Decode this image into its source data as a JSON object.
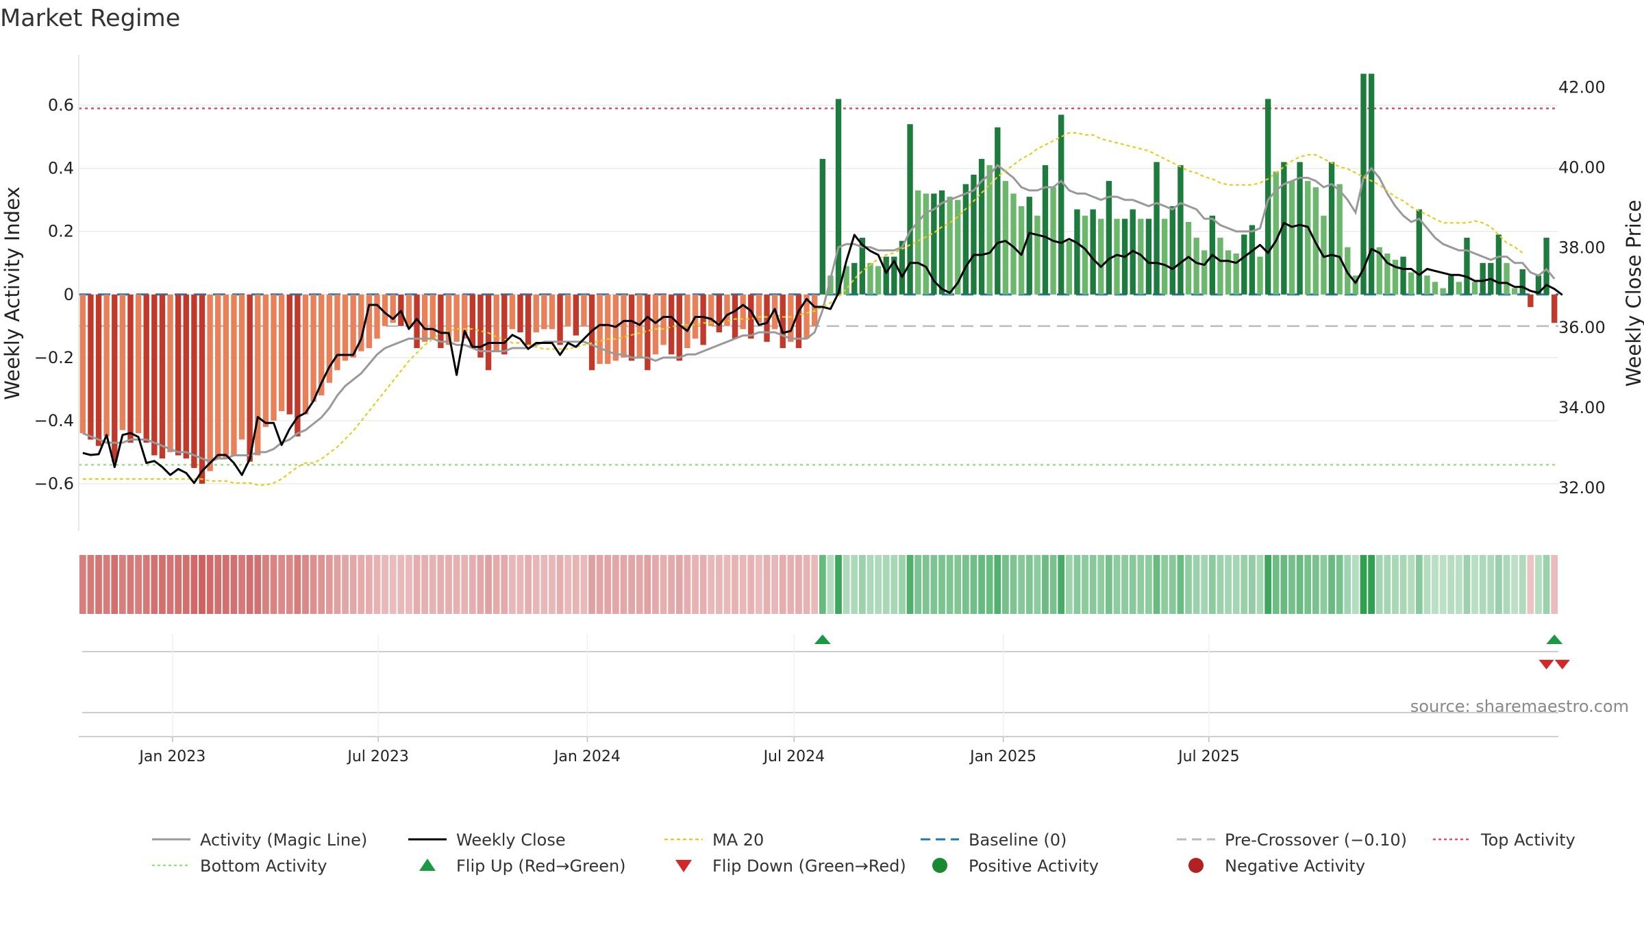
{
  "title": "Market Regime",
  "source": "source: sharemaestro.com",
  "colors": {
    "bar_red_dark": "#c0392b",
    "bar_red_light": "#e8805a",
    "bar_green_dark": "#1e7b3e",
    "bar_green_light": "#6bb86c",
    "magic_line": "#999999",
    "close_line": "#000000",
    "ma20": "#e6cc1e",
    "baseline": "#1f77b4",
    "pre_crossover": "#bbbbbb",
    "top_activity": "#e84a6a",
    "bottom_activity": "#9be07a",
    "flip_up": "#1a9a45",
    "flip_down": "#d62728",
    "positive": "#1a8a30",
    "negative": "#b22222"
  },
  "chart_data": {
    "type": "bar",
    "x_start": "2022-10-14",
    "x_step_days": 7,
    "x_ticks": [
      "Jan 2023",
      "Jul 2023",
      "Jan 2024",
      "Jul 2024",
      "Jan 2025",
      "Jul 2025"
    ],
    "x_tick_dates": [
      "2023-01-01",
      "2023-07-01",
      "2024-01-01",
      "2024-07-01",
      "2025-01-01",
      "2025-07-01"
    ],
    "left_axis": {
      "label": "Weekly Activity Index",
      "ticks": [
        "−0.6",
        "−0.4",
        "−0.2",
        "0",
        "0.2",
        "0.4",
        "0.6"
      ],
      "range": [
        -0.75,
        0.76
      ]
    },
    "right_axis": {
      "label": "Weekly Close Price",
      "ticks": [
        "32.00",
        "34.00",
        "36.00",
        "38.00",
        "40.00",
        "42.00"
      ],
      "range": [
        30.9,
        42.8
      ]
    },
    "reference_lines": {
      "baseline": 0,
      "pre_crossover": -0.1,
      "top_activity": 0.59,
      "bottom_activity": -0.54
    },
    "series": [
      {
        "name": "Weekly Activity Index (bars)",
        "values": [
          -0.44,
          -0.46,
          -0.48,
          -0.45,
          -0.53,
          -0.43,
          -0.47,
          -0.44,
          -0.47,
          -0.51,
          -0.52,
          -0.5,
          -0.51,
          -0.52,
          -0.55,
          -0.6,
          -0.56,
          -0.52,
          -0.52,
          -0.51,
          -0.46,
          -0.53,
          -0.51,
          -0.42,
          -0.4,
          -0.37,
          -0.38,
          -0.45,
          -0.38,
          -0.34,
          -0.32,
          -0.28,
          -0.24,
          -0.21,
          -0.2,
          -0.18,
          -0.17,
          -0.14,
          -0.1,
          -0.09,
          -0.1,
          -0.1,
          -0.17,
          -0.15,
          -0.14,
          -0.17,
          -0.16,
          -0.15,
          -0.14,
          -0.17,
          -0.2,
          -0.24,
          -0.18,
          -0.19,
          -0.11,
          -0.12,
          -0.16,
          -0.12,
          -0.11,
          -0.11,
          -0.16,
          -0.1,
          -0.13,
          -0.1,
          -0.24,
          -0.22,
          -0.22,
          -0.21,
          -0.2,
          -0.21,
          -0.2,
          -0.24,
          -0.19,
          -0.16,
          -0.19,
          -0.21,
          -0.17,
          -0.14,
          -0.16,
          -0.1,
          -0.12,
          -0.1,
          -0.14,
          -0.11,
          -0.14,
          -0.09,
          -0.15,
          -0.11,
          -0.17,
          -0.15,
          -0.17,
          -0.14,
          -0.1,
          0.43,
          0.06,
          0.62,
          0.09,
          0.1,
          0.18,
          0.1,
          0.09,
          0.12,
          0.12,
          0.17,
          0.54,
          0.33,
          0.32,
          0.32,
          0.33,
          0.31,
          0.3,
          0.35,
          0.38,
          0.43,
          0.41,
          0.53,
          0.36,
          0.32,
          0.28,
          0.31,
          0.25,
          0.41,
          0.34,
          0.57,
          0.17,
          0.27,
          0.25,
          0.27,
          0.24,
          0.36,
          0.24,
          0.24,
          0.27,
          0.24,
          0.24,
          0.42,
          0.24,
          0.28,
          0.41,
          0.23,
          0.18,
          0.14,
          0.25,
          0.18,
          0.14,
          0.13,
          0.19,
          0.22,
          0.12,
          0.62,
          0.39,
          0.42,
          0.36,
          0.42,
          0.36,
          0.34,
          0.25,
          0.42,
          0.35,
          0.15,
          0.06,
          0.7,
          0.7,
          0.15,
          0.13,
          0.11,
          0.12,
          0.07,
          0.27,
          0.06,
          0.04,
          0.02,
          0.06,
          0.04,
          0.18,
          0.04,
          0.1,
          0.1,
          0.19,
          0.1,
          0.02,
          0.08,
          -0.04,
          0.06,
          0.18,
          -0.09
        ]
      },
      {
        "name": "Weekly Close",
        "values": [
          32.85,
          32.8,
          32.82,
          33.3,
          32.5,
          33.3,
          33.35,
          33.25,
          32.6,
          32.65,
          32.5,
          32.3,
          32.45,
          32.35,
          32.1,
          32.4,
          32.6,
          32.8,
          32.8,
          32.6,
          32.3,
          32.7,
          33.75,
          33.6,
          33.6,
          33.05,
          33.45,
          33.75,
          33.85,
          34.15,
          34.6,
          35,
          35.3,
          35.3,
          35.3,
          35.7,
          36.55,
          36.55,
          36.35,
          36.2,
          36.4,
          35.95,
          36.2,
          35.95,
          35.95,
          35.85,
          35.85,
          34.8,
          35.9,
          35.5,
          35.5,
          35.6,
          35.6,
          35.6,
          35.8,
          35.7,
          35.45,
          35.6,
          35.6,
          35.6,
          35.3,
          35.6,
          35.5,
          35.7,
          35.9,
          36.05,
          36.05,
          36,
          36.15,
          36.15,
          36.05,
          36.25,
          36.1,
          36.25,
          36.25,
          36.05,
          35.9,
          36.25,
          36.25,
          36.2,
          36.05,
          36.3,
          36.4,
          36.55,
          36.4,
          36.05,
          36.1,
          36.45,
          35.85,
          35.9,
          36.4,
          36.7,
          36.5,
          36.5,
          36.45,
          36.85,
          37.65,
          38.3,
          38.05,
          37.9,
          37.8,
          37.35,
          37.65,
          37.25,
          37.6,
          37.6,
          37.5,
          37.15,
          36.95,
          36.85,
          37.1,
          37.5,
          37.8,
          37.8,
          37.85,
          38.1,
          38.15,
          38,
          37.8,
          38.35,
          38.3,
          38.25,
          38.15,
          38.1,
          38.2,
          38.1,
          37.95,
          37.7,
          37.5,
          37.7,
          37.8,
          37.75,
          37.9,
          37.8,
          37.6,
          37.6,
          37.55,
          37.45,
          37.6,
          37.75,
          37.6,
          37.55,
          37.8,
          37.65,
          37.65,
          37.6,
          37.75,
          37.9,
          38.05,
          37.85,
          38.15,
          38.6,
          38.5,
          38.55,
          38.5,
          38.1,
          37.75,
          37.8,
          37.75,
          37.35,
          37.1,
          37.45,
          37.95,
          37.85,
          37.6,
          37.5,
          37.45,
          37.45,
          37.3,
          37.45,
          37.4,
          37.35,
          37.3,
          37.3,
          37.25,
          37.15,
          37.15,
          37.2,
          37.1,
          37.1,
          37,
          37,
          36.9,
          36.85,
          37.05,
          36.95,
          36.8
        ]
      },
      {
        "name": "MA 20",
        "values": [
          32.2,
          32.2,
          32.2,
          32.2,
          32.2,
          32.2,
          32.2,
          32.2,
          32.2,
          32.2,
          32.2,
          32.2,
          32.2,
          32.2,
          32.2,
          32.2,
          32.15,
          32.15,
          32.15,
          32.1,
          32.1,
          32.1,
          32.05,
          32.05,
          32.1,
          32.2,
          32.35,
          32.5,
          32.6,
          32.6,
          32.7,
          32.85,
          33,
          33.2,
          33.4,
          33.65,
          33.9,
          34.15,
          34.4,
          34.65,
          34.9,
          35.15,
          35.35,
          35.55,
          35.7,
          35.85,
          35.9,
          35.95,
          35.95,
          35.95,
          35.9,
          35.85,
          35.75,
          35.7,
          35.6,
          35.6,
          35.55,
          35.5,
          35.45,
          35.45,
          35.45,
          35.45,
          35.5,
          35.55,
          35.6,
          35.65,
          35.7,
          35.7,
          35.75,
          35.8,
          35.85,
          35.9,
          35.95,
          35.95,
          36,
          36.05,
          36.05,
          36.05,
          36.1,
          36.1,
          36.1,
          36.15,
          36.2,
          36.2,
          36.2,
          36.25,
          36.25,
          36.3,
          36.25,
          36.25,
          36.3,
          36.35,
          36.4,
          36.5,
          36.6,
          36.75,
          36.95,
          37.2,
          37.4,
          37.55,
          37.7,
          37.8,
          37.85,
          37.95,
          38.05,
          38.15,
          38.25,
          38.35,
          38.5,
          38.6,
          38.75,
          38.95,
          39.15,
          39.35,
          39.55,
          39.75,
          39.9,
          40.05,
          40.2,
          40.3,
          40.45,
          40.55,
          40.65,
          40.75,
          40.85,
          40.85,
          40.8,
          40.8,
          40.7,
          40.65,
          40.6,
          40.55,
          40.5,
          40.45,
          40.4,
          40.3,
          40.2,
          40.1,
          40,
          39.9,
          39.85,
          39.75,
          39.7,
          39.6,
          39.55,
          39.55,
          39.55,
          39.55,
          39.6,
          39.7,
          39.85,
          40,
          40.15,
          40.25,
          40.3,
          40.3,
          40.2,
          40.1,
          40,
          39.95,
          39.85,
          39.75,
          39.65,
          39.55,
          39.4,
          39.25,
          39.15,
          39,
          38.9,
          38.8,
          38.7,
          38.6,
          38.6,
          38.6,
          38.6,
          38.65,
          38.6,
          38.5,
          38.3,
          38.1,
          38,
          37.85
        ]
      },
      {
        "name": "Activity (Magic Line)",
        "values": [
          -0.44,
          -0.45,
          -0.46,
          -0.47,
          -0.47,
          -0.47,
          -0.46,
          -0.46,
          -0.46,
          -0.47,
          -0.48,
          -0.49,
          -0.5,
          -0.5,
          -0.51,
          -0.52,
          -0.53,
          -0.52,
          -0.52,
          -0.51,
          -0.51,
          -0.51,
          -0.5,
          -0.5,
          -0.49,
          -0.47,
          -0.46,
          -0.44,
          -0.43,
          -0.41,
          -0.39,
          -0.36,
          -0.32,
          -0.29,
          -0.27,
          -0.25,
          -0.22,
          -0.19,
          -0.17,
          -0.16,
          -0.15,
          -0.14,
          -0.14,
          -0.14,
          -0.14,
          -0.15,
          -0.15,
          -0.16,
          -0.16,
          -0.17,
          -0.18,
          -0.18,
          -0.18,
          -0.18,
          -0.17,
          -0.17,
          -0.17,
          -0.16,
          -0.15,
          -0.15,
          -0.15,
          -0.15,
          -0.15,
          -0.15,
          -0.16,
          -0.17,
          -0.18,
          -0.19,
          -0.19,
          -0.2,
          -0.2,
          -0.2,
          -0.21,
          -0.2,
          -0.2,
          -0.2,
          -0.19,
          -0.19,
          -0.18,
          -0.17,
          -0.16,
          -0.15,
          -0.14,
          -0.13,
          -0.13,
          -0.12,
          -0.12,
          -0.12,
          -0.13,
          -0.14,
          -0.14,
          -0.14,
          -0.12,
          -0.05,
          0.05,
          0.15,
          0.16,
          0.16,
          0.15,
          0.15,
          0.14,
          0.14,
          0.14,
          0.15,
          0.2,
          0.23,
          0.26,
          0.27,
          0.29,
          0.3,
          0.31,
          0.32,
          0.33,
          0.36,
          0.38,
          0.41,
          0.39,
          0.37,
          0.34,
          0.33,
          0.33,
          0.34,
          0.34,
          0.36,
          0.33,
          0.32,
          0.32,
          0.31,
          0.3,
          0.31,
          0.31,
          0.3,
          0.3,
          0.29,
          0.28,
          0.29,
          0.28,
          0.27,
          0.29,
          0.28,
          0.27,
          0.24,
          0.24,
          0.22,
          0.21,
          0.2,
          0.2,
          0.2,
          0.21,
          0.3,
          0.33,
          0.35,
          0.36,
          0.37,
          0.37,
          0.36,
          0.34,
          0.35,
          0.33,
          0.3,
          0.26,
          0.37,
          0.4,
          0.37,
          0.32,
          0.28,
          0.25,
          0.23,
          0.24,
          0.21,
          0.18,
          0.16,
          0.15,
          0.14,
          0.14,
          0.13,
          0.12,
          0.11,
          0.12,
          0.12,
          0.1,
          0.1,
          0.07,
          0.06,
          0.08,
          0.05
        ]
      }
    ],
    "flip_up_indices": [
      93,
      185
    ],
    "flip_down_indices": [
      184,
      186
    ],
    "legend": [
      "Activity (Magic Line)",
      "Weekly Close",
      "MA 20",
      "Baseline (0)",
      "Pre-Crossover (−0.10)",
      "Top Activity",
      "Bottom Activity",
      "Flip Up (Red→Green)",
      "Flip Down (Green→Red)",
      "Positive Activity",
      "Negative Activity"
    ]
  }
}
